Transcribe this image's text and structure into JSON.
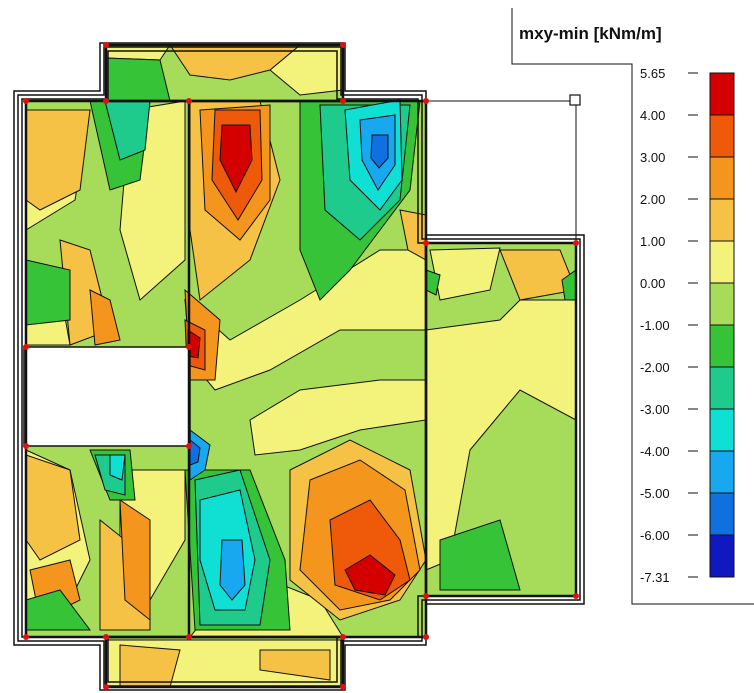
{
  "chart_data": {
    "type": "heatmap",
    "title": "mxy-min [kNm/m]",
    "legend_position": "right",
    "value_range": [
      -7.31,
      5.65
    ],
    "scale": [
      {
        "label": "5.65",
        "value": 5.65,
        "color": "#d40000"
      },
      {
        "label": "4.00",
        "value": 4.0,
        "color": "#ee5a0a"
      },
      {
        "label": "3.00",
        "value": 3.0,
        "color": "#f4961e"
      },
      {
        "label": "2.00",
        "value": 2.0,
        "color": "#f6c246"
      },
      {
        "label": "1.00",
        "value": 1.0,
        "color": "#f3f27a"
      },
      {
        "label": "0.00",
        "value": 0.0,
        "color": "#a6dc5a"
      },
      {
        "label": "-1.00",
        "value": -1.0,
        "color": "#37c337"
      },
      {
        "label": "-2.00",
        "value": -2.0,
        "color": "#1ecb8c"
      },
      {
        "label": "-3.00",
        "value": -3.0,
        "color": "#10e0d4"
      },
      {
        "label": "-4.00",
        "value": -4.0,
        "color": "#18a8f0"
      },
      {
        "label": "-5.00",
        "value": -5.0,
        "color": "#1070e0"
      },
      {
        "label": "-6.00",
        "value": -6.0,
        "color": "#1018c0"
      },
      {
        "label": "-7.31",
        "value": -7.31,
        "color": "#0000a0"
      }
    ]
  }
}
